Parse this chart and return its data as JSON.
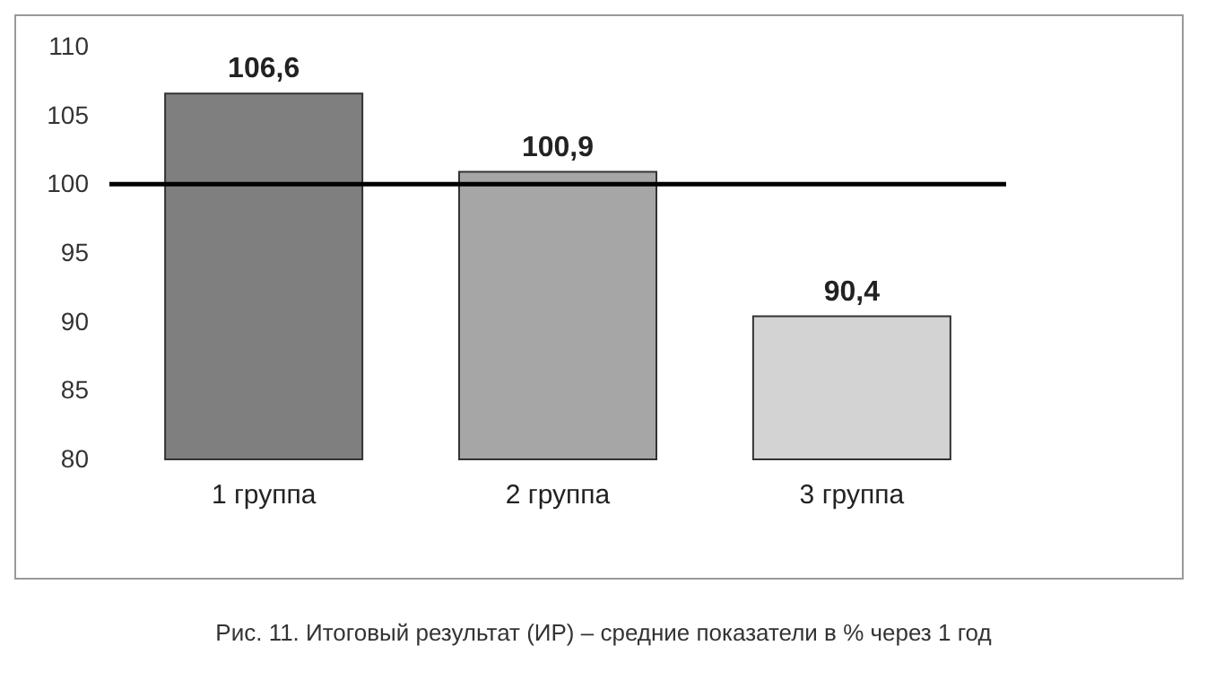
{
  "chart_data": {
    "type": "bar",
    "categories": [
      "1 группа",
      "2 группа",
      "3 группа"
    ],
    "values": [
      106.6,
      100.9,
      90.4
    ],
    "colors": [
      "#7f7f7f",
      "#a6a6a6",
      "#d3d3d3"
    ],
    "ylim": [
      80,
      110
    ],
    "yticks": [
      80,
      85,
      90,
      95,
      100,
      105,
      110
    ],
    "value_labels": [
      "106,6",
      "100,9",
      "90,4"
    ],
    "grid": false,
    "ref_lines": [
      {
        "axis": "y",
        "value": 100,
        "color": "#000000"
      }
    ],
    "annotations": [
      "Рис. 11. Итоговый результат (ИР) – средние показатели в % через 1 год"
    ]
  }
}
